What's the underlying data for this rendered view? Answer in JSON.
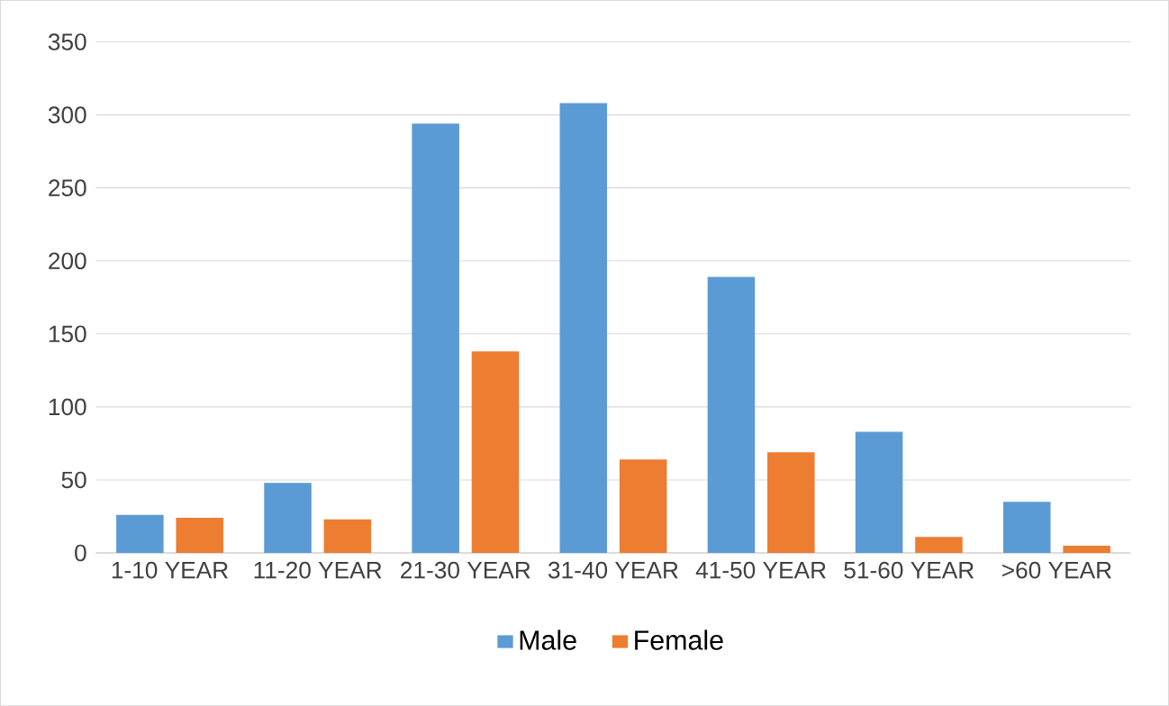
{
  "chart_data": {
    "type": "bar",
    "categories": [
      "1-10 YEAR",
      "11-20 YEAR",
      "21-30 YEAR",
      "31-40 YEAR",
      "41-50 YEAR",
      "51-60 YEAR",
      ">60 YEAR"
    ],
    "series": [
      {
        "name": "Male",
        "color": "#5b9bd5",
        "values": [
          26,
          48,
          294,
          308,
          189,
          83,
          35
        ]
      },
      {
        "name": "Female",
        "color": "#ed7d31",
        "values": [
          24,
          23,
          138,
          64,
          69,
          11,
          5
        ]
      }
    ],
    "ylim": [
      0,
      350
    ],
    "yticks": [
      0,
      50,
      100,
      150,
      200,
      250,
      300,
      350
    ],
    "grid": "y",
    "legend": "bottom"
  }
}
